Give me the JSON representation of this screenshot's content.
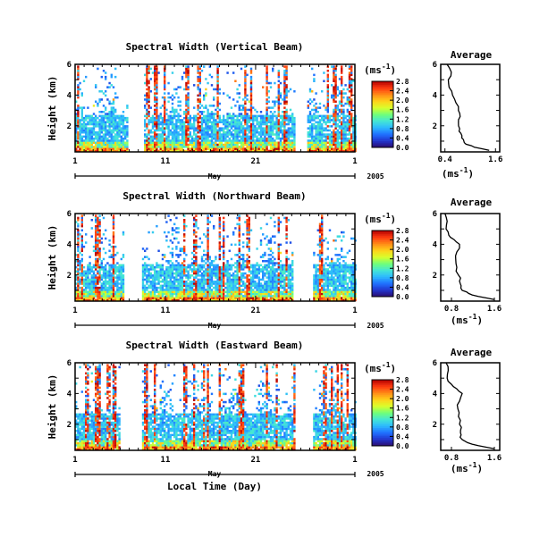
{
  "colors": {
    "scale": [
      "#2b0a6b",
      "#2233cc",
      "#1f6fff",
      "#2bb7ff",
      "#43e6d6",
      "#6fff7a",
      "#d8ff2b",
      "#ffd21a",
      "#ff8c16",
      "#ff3a10",
      "#b30000"
    ],
    "line": "#000000",
    "data_gap": "#ffffff"
  },
  "chart_data": [
    {
      "type": "heatmap",
      "title": "Spectral Width (Vertical Beam)",
      "ylabel": "Height (km)",
      "yticks": [
        "6",
        "4",
        "2"
      ],
      "ylim": [
        0.3,
        6
      ],
      "xticks": [
        "1",
        "11",
        "21",
        "1"
      ],
      "month_label": "May",
      "year_label": "2005",
      "xlim_day": [
        1,
        32
      ],
      "data_gaps_day": [
        [
          6.8,
          8.6
        ],
        [
          25.4,
          26.6
        ]
      ],
      "colorbar": {
        "unit": "(ms",
        "unit_sup": "-1",
        "unit_close": ")",
        "ticks": [
          "2.8",
          "2.4",
          "2.0",
          "1.6",
          "1.2",
          "0.8",
          "0.4",
          "0.0"
        ],
        "range": [
          0.0,
          2.8
        ]
      },
      "average_profile": {
        "title": "Average",
        "xlabel": "(ms",
        "xlabel_sup": "-1",
        "xlabel_close": ")",
        "xticks": [
          "0.4",
          "1.6"
        ],
        "xlim": [
          0.3,
          1.7
        ],
        "yticks": [
          "6",
          "4",
          "2"
        ],
        "ylim": [
          0.3,
          6
        ],
        "height_km": [
          0.4,
          0.6,
          0.8,
          1.0,
          1.2,
          1.5,
          1.8,
          2.2,
          2.6,
          3.0,
          3.5,
          4.0,
          4.5,
          5.0,
          5.5,
          6.0
        ],
        "width_ms": [
          1.45,
          1.1,
          0.9,
          0.85,
          0.8,
          0.78,
          0.75,
          0.72,
          0.76,
          0.72,
          0.66,
          0.58,
          0.5,
          0.48,
          0.55,
          0.45
        ]
      }
    },
    {
      "type": "heatmap",
      "title": "Spectral Width (Northward Beam)",
      "ylabel": "Height (km)",
      "yticks": [
        "6",
        "4",
        "2"
      ],
      "ylim": [
        0.3,
        6
      ],
      "xticks": [
        "1",
        "11",
        "21",
        "1"
      ],
      "month_label": "May",
      "year_label": "2005",
      "xlim_day": [
        1,
        32
      ],
      "data_gaps_day": [
        [
          6.3,
          8.3
        ],
        [
          25.0,
          27.2
        ]
      ],
      "colorbar": {
        "unit": "(ms",
        "unit_sup": "-1",
        "unit_close": ")",
        "ticks": [
          "2.8",
          "2.4",
          "2.0",
          "1.6",
          "1.2",
          "0.8",
          "0.4",
          "0.0"
        ],
        "range": [
          0.0,
          2.8
        ]
      },
      "average_profile": {
        "title": "Average",
        "xlabel": "(ms",
        "xlabel_sup": "-1",
        "xlabel_close": ")",
        "xticks": [
          "0.8",
          "1.6"
        ],
        "xlim": [
          0.6,
          1.7
        ],
        "yticks": [
          "6",
          "4",
          "2"
        ],
        "ylim": [
          0.3,
          6
        ],
        "height_km": [
          0.4,
          0.6,
          0.8,
          1.0,
          1.3,
          1.6,
          2.0,
          2.5,
          3.0,
          3.5,
          4.0,
          4.3,
          4.6,
          5.0,
          5.5,
          6.0
        ],
        "width_ms": [
          1.6,
          1.3,
          1.12,
          1.0,
          0.98,
          0.95,
          0.93,
          0.9,
          0.88,
          0.9,
          0.95,
          0.85,
          0.75,
          0.7,
          0.72,
          0.68
        ]
      }
    },
    {
      "type": "heatmap",
      "title": "Spectral Width (Eastward Beam)",
      "ylabel": "Height (km)",
      "yticks": [
        "6",
        "4",
        "2"
      ],
      "ylim": [
        0.3,
        6
      ],
      "xticks": [
        "1",
        "11",
        "21",
        "1"
      ],
      "month_label": "May",
      "year_label": "2005",
      "xlabel": "Local Time (Day)",
      "xlim_day": [
        1,
        32
      ],
      "data_gaps_day": [
        [
          6.0,
          8.3
        ],
        [
          25.2,
          27.2
        ]
      ],
      "colorbar": {
        "unit": "(ms",
        "unit_sup": "-1",
        "unit_close": ")",
        "ticks": [
          "2.8",
          "2.4",
          "2.0",
          "1.6",
          "1.2",
          "0.8",
          "0.4",
          "0.0"
        ],
        "range": [
          0.0,
          2.8
        ]
      },
      "average_profile": {
        "title": "Average",
        "xlabel": "(ms",
        "xlabel_sup": "-1",
        "xlabel_close": ")",
        "xticks": [
          "0.8",
          "1.6"
        ],
        "xlim": [
          0.6,
          1.7
        ],
        "yticks": [
          "6",
          "4",
          "2"
        ],
        "ylim": [
          0.3,
          6
        ],
        "height_km": [
          0.4,
          0.6,
          0.8,
          1.0,
          1.3,
          1.6,
          2.0,
          2.5,
          3.0,
          3.5,
          4.0,
          4.3,
          4.6,
          5.0,
          5.5,
          6.0
        ],
        "width_ms": [
          1.6,
          1.3,
          1.1,
          1.0,
          0.98,
          0.97,
          0.95,
          0.93,
          0.92,
          0.95,
          1.0,
          0.9,
          0.8,
          0.72,
          0.74,
          0.7
        ]
      }
    }
  ]
}
